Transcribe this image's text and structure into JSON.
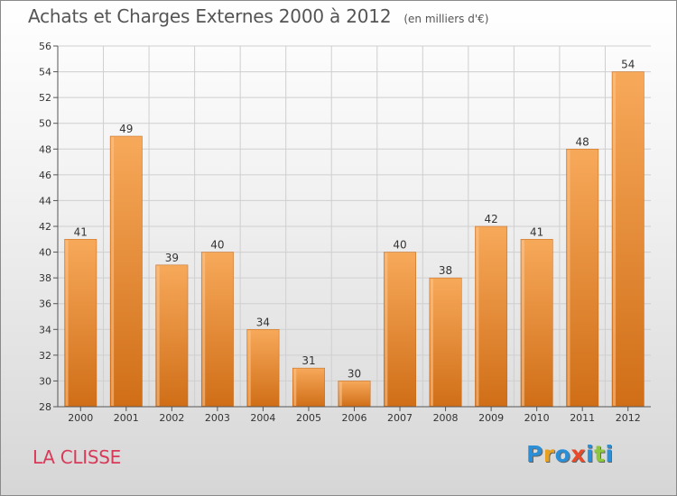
{
  "title": "Achats et Charges Externes 2000 à 2012",
  "subtitle": "(en milliers d'€)",
  "commune": "LA CLISSE",
  "logo": {
    "letters": [
      "P",
      "r",
      "o",
      "x",
      "i",
      "t",
      "i"
    ],
    "colors": [
      "#2a8fd6",
      "#e8a020",
      "#2a8fd6",
      "#e84a2a",
      "#2a8fd6",
      "#8cc63f",
      "#2a8fd6"
    ]
  },
  "colors": {
    "bar_light": "#f7a95a",
    "bar_dark": "#d06e17",
    "grid": "#cfcfcf",
    "axis": "#555555"
  },
  "chart_data": {
    "type": "bar",
    "categories": [
      "2000",
      "2001",
      "2002",
      "2003",
      "2004",
      "2005",
      "2006",
      "2007",
      "2008",
      "2009",
      "2010",
      "2011",
      "2012"
    ],
    "values": [
      41,
      49,
      39,
      40,
      34,
      31,
      30,
      40,
      38,
      42,
      41,
      48,
      54
    ],
    "title": "Achats et Charges Externes 2000 à 2012",
    "ylim": [
      28,
      56
    ],
    "yticks": [
      28,
      30,
      32,
      34,
      36,
      38,
      40,
      42,
      44,
      46,
      48,
      50,
      52,
      54,
      56
    ],
    "grid": true
  }
}
